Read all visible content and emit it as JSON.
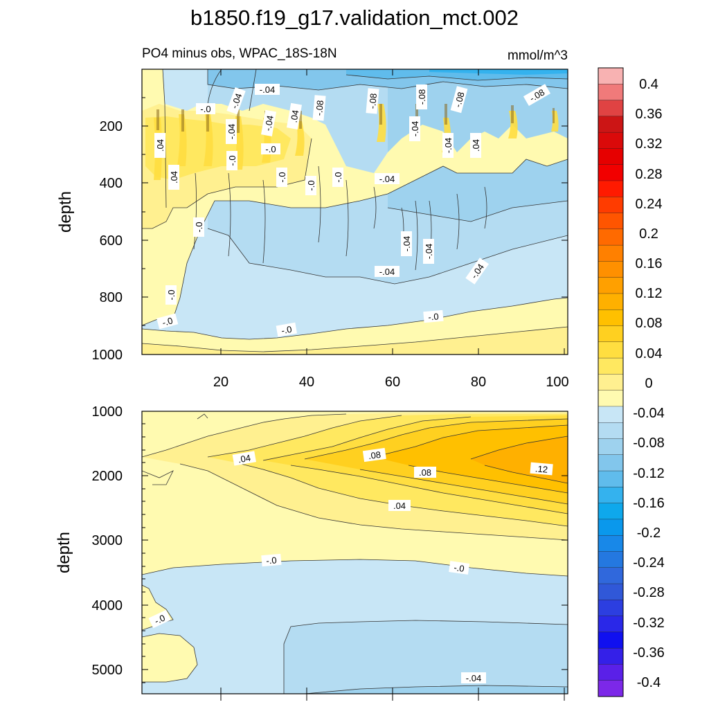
{
  "chart_data": {
    "type": "heatmap",
    "title": "b1850.f19_g17.validation_mct.002",
    "subtitle_left": "PO4 minus obs, WPAC_18S-18N",
    "subtitle_right": "mmol/m^3",
    "colorbar": {
      "labels": [
        "0.4",
        "0.36",
        "0.32",
        "0.28",
        "0.24",
        "0.2",
        "0.16",
        "0.12",
        "0.08",
        "0.04",
        "0",
        "-0.04",
        "-0.08",
        "-0.12",
        "-0.16",
        "-0.2",
        "-0.24",
        "-0.28",
        "-0.32",
        "-0.36",
        "-0.4"
      ],
      "colors_top_to_bottom": [
        "#f8b2b2",
        "#f07a7a",
        "#e04343",
        "#cc1515",
        "#da0a0a",
        "#e60000",
        "#f20000",
        "#ff1a00",
        "#ff3c00",
        "#ff5500",
        "#ff6a00",
        "#ff8000",
        "#ff9000",
        "#ffa000",
        "#ffb000",
        "#ffc000",
        "#ffd020",
        "#ffde40",
        "#ffe860",
        "#fff090",
        "#fffab0",
        "#c8e6f6",
        "#b4dcf2",
        "#9ed2ee",
        "#82c6ec",
        "#60bcec",
        "#34b2ee",
        "#0ea8ec",
        "#0a98ec",
        "#1888e8",
        "#2478e0",
        "#3068dc",
        "#3058d8",
        "#2c3ee0",
        "#2a28e8",
        "#1010f0",
        "#3420e8",
        "#5a20e8",
        "#7c28e8"
      ]
    },
    "upper_panel": {
      "xlim": [
        1,
        100
      ],
      "ylim": [
        1000,
        0
      ],
      "ylabel": "depth",
      "xticks": [
        "20",
        "40",
        "60",
        "80",
        "100"
      ],
      "yticks": [
        "200",
        "400",
        "600",
        "800",
        "1000"
      ],
      "contour_labels": [
        "-.04",
        "-.04",
        "-.0",
        ".04",
        ".04",
        "-.04",
        "-.0",
        "-.04",
        ".04",
        "-.08",
        "-.08",
        "-.08",
        "-.08",
        "-.08",
        "-.04",
        "-.04",
        ".04",
        "-.0",
        "-.0",
        "-.0",
        "-.0",
        "-.0",
        "-.04",
        "-.04",
        "-.04",
        "-.04",
        "-.04",
        "-.0",
        "-.0",
        "-.0",
        "-.0",
        ".04",
        "-.0"
      ]
    },
    "lower_panel": {
      "xlim": [
        1,
        100
      ],
      "ylim": [
        5400,
        1000
      ],
      "ylabel": "depth",
      "yticks": [
        "1000",
        "2000",
        "3000",
        "4000",
        "5000"
      ],
      "contour_labels": [
        ".04",
        ".08",
        ".08",
        ".12",
        ".04",
        "-.0",
        "-.0",
        "-.0",
        "-.04"
      ]
    }
  }
}
